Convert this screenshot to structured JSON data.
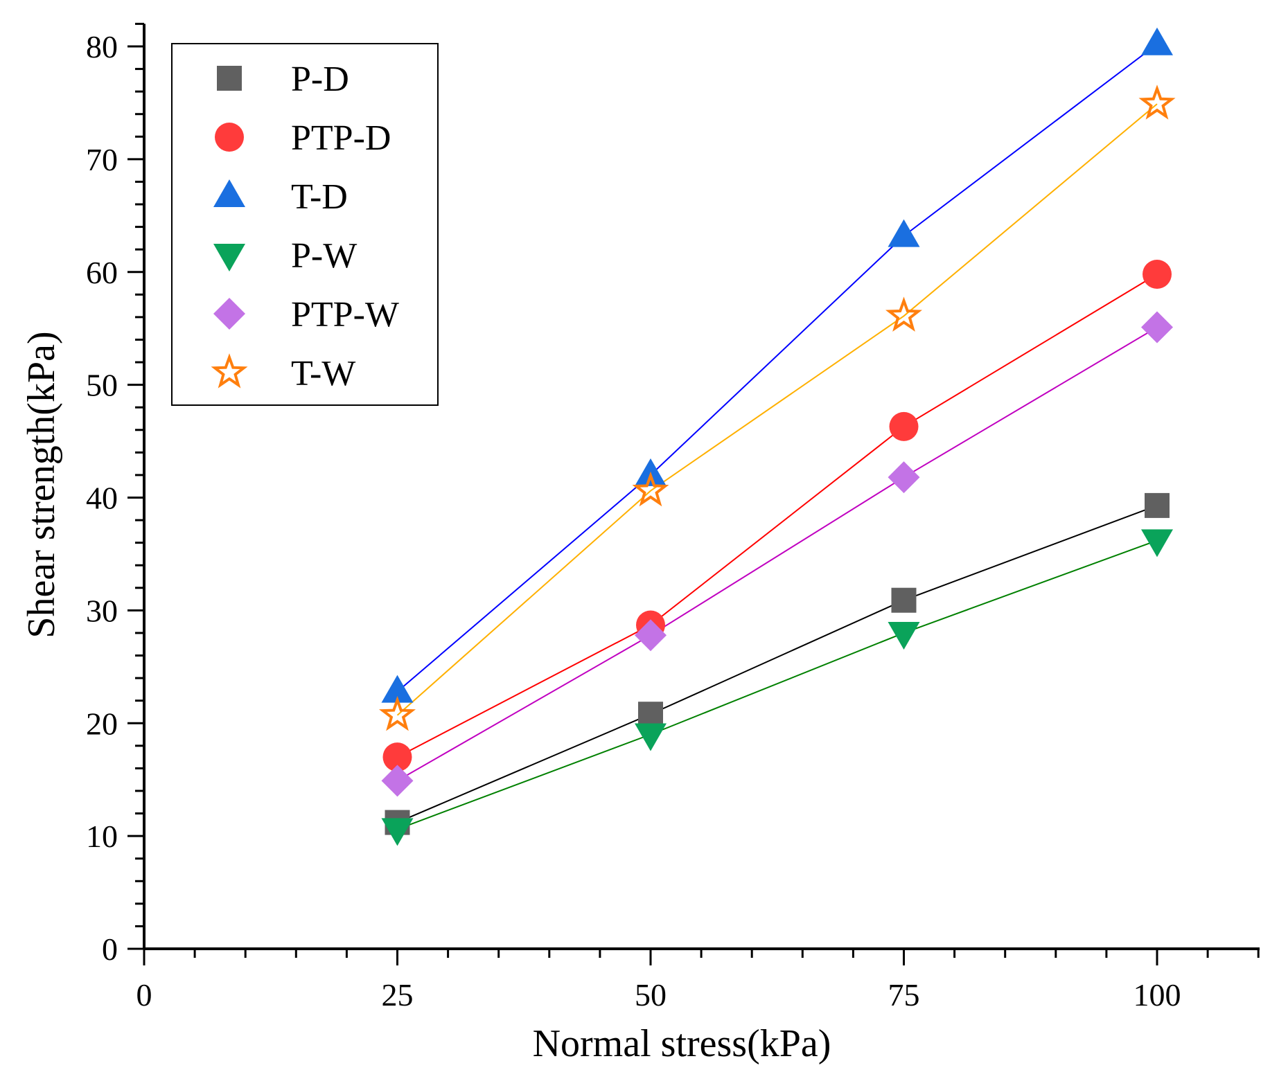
{
  "chart_data": {
    "type": "scatter",
    "title": "",
    "xlabel": "Normal stress(kPa)",
    "ylabel": "Shear strength(kPa)",
    "xlim": [
      0,
      110
    ],
    "ylim": [
      0,
      82
    ],
    "x_ticks": [
      0,
      25,
      50,
      75,
      100
    ],
    "x_tick_labels": [
      "0",
      "25",
      "50",
      "75",
      "100"
    ],
    "y_ticks": [
      0,
      10,
      20,
      30,
      40,
      50,
      60,
      70,
      80
    ],
    "y_tick_labels": [
      "0",
      "10",
      "20",
      "30",
      "40",
      "50",
      "60",
      "70",
      "80"
    ],
    "grid": false,
    "legend_position": "top-left",
    "x": [
      25,
      50,
      75,
      100
    ],
    "series": [
      {
        "name": "P-D",
        "values": [
          11.2,
          20.8,
          30.9,
          39.3
        ],
        "marker": "square",
        "marker_color": "#606060",
        "line_color": "#000000"
      },
      {
        "name": "PTP-D",
        "values": [
          17.0,
          28.7,
          46.3,
          59.8
        ],
        "marker": "circle",
        "marker_color": "#ff3b3b",
        "line_color": "#ff0000"
      },
      {
        "name": "T-D",
        "values": [
          22.8,
          42.0,
          63.2,
          80.2
        ],
        "marker": "triangle-up",
        "marker_color": "#1a6fe0",
        "line_color": "#0000ff"
      },
      {
        "name": "P-W",
        "values": [
          10.6,
          19.0,
          28.0,
          36.2
        ],
        "marker": "triangle-down",
        "marker_color": "#0aa35a",
        "line_color": "#008000"
      },
      {
        "name": "PTP-W",
        "values": [
          14.9,
          27.8,
          41.8,
          55.1
        ],
        "marker": "diamond",
        "marker_color": "#c373e6",
        "line_color": "#c000c0"
      },
      {
        "name": "T-W",
        "values": [
          20.7,
          40.6,
          56.1,
          74.9
        ],
        "marker": "star-open",
        "marker_color": "#ff7f0e",
        "line_color": "#ffb000"
      }
    ]
  }
}
